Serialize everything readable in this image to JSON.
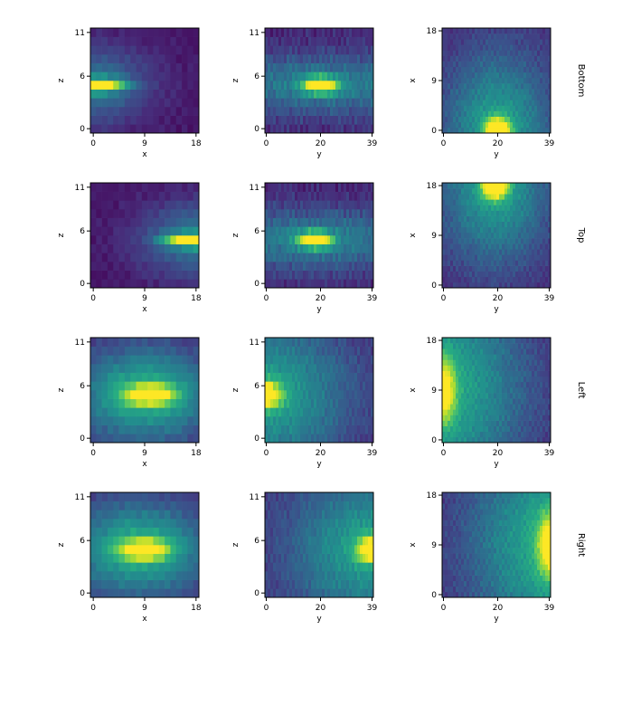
{
  "chart_data": {
    "type": "heatmap",
    "colormap": "viridis",
    "grid": false,
    "rows": [
      {
        "label": "Bottom",
        "panels": [
          {
            "xlabel": "x",
            "ylabel": "z",
            "xticks": [
              "0",
              "9",
              "18"
            ],
            "yticks": [
              "0",
              "6",
              "11"
            ],
            "xlim": [
              0,
              18
            ],
            "ylim": [
              0,
              11
            ],
            "nx": 19,
            "ny": 12,
            "blobs": [
              {
                "cx": 0,
                "cy": 5,
                "sx": 3.5,
                "sy": 0.5,
                "a": 1.0
              },
              {
                "cx": 0,
                "cy": 5,
                "sx": 7,
                "sy": 3,
                "a": 0.35
              }
            ],
            "base": 0.06,
            "noise": 0.05
          },
          {
            "xlabel": "y",
            "ylabel": "z",
            "xticks": [
              "0",
              "20",
              "39"
            ],
            "yticks": [
              "0",
              "6",
              "11"
            ],
            "xlim": [
              0,
              39
            ],
            "ylim": [
              0,
              11
            ],
            "nx": 40,
            "ny": 12,
            "blobs": [
              {
                "cx": 20,
                "cy": 5,
                "sx": 4,
                "sy": 0.6,
                "a": 0.95
              },
              {
                "cx": 20,
                "cy": 5,
                "sx": 30,
                "sy": 2.5,
                "a": 0.35
              }
            ],
            "base": 0.1,
            "noise": 0.1
          },
          {
            "xlabel": "y",
            "ylabel": "x",
            "xticks": [
              "0",
              "20",
              "39"
            ],
            "yticks": [
              "0",
              "9",
              "18"
            ],
            "xlim": [
              0,
              39
            ],
            "ylim": [
              0,
              18
            ],
            "nx": 40,
            "ny": 19,
            "blobs": [
              {
                "cx": 20,
                "cy": 0,
                "sx": 3,
                "sy": 1.5,
                "a": 1.0
              },
              {
                "cx": 20,
                "cy": 0,
                "sx": 14,
                "sy": 10,
                "a": 0.45
              }
            ],
            "base": 0.12,
            "noise": 0.08
          }
        ]
      },
      {
        "label": "Top",
        "panels": [
          {
            "xlabel": "x",
            "ylabel": "z",
            "xticks": [
              "0",
              "9",
              "18"
            ],
            "yticks": [
              "0",
              "6",
              "11"
            ],
            "xlim": [
              0,
              18
            ],
            "ylim": [
              0,
              11
            ],
            "nx": 19,
            "ny": 12,
            "blobs": [
              {
                "cx": 18,
                "cy": 5,
                "sx": 3.5,
                "sy": 0.5,
                "a": 1.0
              },
              {
                "cx": 18,
                "cy": 5,
                "sx": 7,
                "sy": 3,
                "a": 0.35
              }
            ],
            "base": 0.06,
            "noise": 0.05
          },
          {
            "xlabel": "y",
            "ylabel": "z",
            "xticks": [
              "0",
              "20",
              "39"
            ],
            "yticks": [
              "0",
              "6",
              "11"
            ],
            "xlim": [
              0,
              39
            ],
            "ylim": [
              0,
              11
            ],
            "nx": 40,
            "ny": 12,
            "blobs": [
              {
                "cx": 18,
                "cy": 5,
                "sx": 4,
                "sy": 0.6,
                "a": 0.95
              },
              {
                "cx": 18,
                "cy": 5,
                "sx": 30,
                "sy": 2.5,
                "a": 0.35
              }
            ],
            "base": 0.1,
            "noise": 0.1
          },
          {
            "xlabel": "y",
            "ylabel": "x",
            "xticks": [
              "0",
              "20",
              "39"
            ],
            "yticks": [
              "0",
              "9",
              "18"
            ],
            "xlim": [
              0,
              39
            ],
            "ylim": [
              0,
              18
            ],
            "nx": 40,
            "ny": 19,
            "blobs": [
              {
                "cx": 19,
                "cy": 18,
                "sx": 3,
                "sy": 1.5,
                "a": 1.0
              },
              {
                "cx": 19,
                "cy": 18,
                "sx": 14,
                "sy": 10,
                "a": 0.45
              }
            ],
            "base": 0.12,
            "noise": 0.08
          }
        ]
      },
      {
        "label": "Left",
        "panels": [
          {
            "xlabel": "x",
            "ylabel": "z",
            "xticks": [
              "0",
              "9",
              "18"
            ],
            "yticks": [
              "0",
              "6",
              "11"
            ],
            "xlim": [
              0,
              18
            ],
            "ylim": [
              0,
              11
            ],
            "nx": 19,
            "ny": 12,
            "blobs": [
              {
                "cx": 10,
                "cy": 5,
                "sx": 3,
                "sy": 0.8,
                "a": 0.7
              },
              {
                "cx": 9,
                "cy": 5,
                "sx": 9,
                "sy": 4,
                "a": 0.55
              }
            ],
            "base": 0.08,
            "noise": 0.06
          },
          {
            "xlabel": "y",
            "ylabel": "z",
            "xticks": [
              "0",
              "20",
              "39"
            ],
            "yticks": [
              "0",
              "6",
              "11"
            ],
            "xlim": [
              0,
              39
            ],
            "ylim": [
              0,
              11
            ],
            "nx": 40,
            "ny": 12,
            "blobs": [
              {
                "cx": 0,
                "cy": 5,
                "sx": 4,
                "sy": 1,
                "a": 0.7
              },
              {
                "cx": 0,
                "cy": 5,
                "sx": 22,
                "sy": 6,
                "a": 0.45
              }
            ],
            "base": 0.12,
            "noise": 0.08
          },
          {
            "xlabel": "y",
            "ylabel": "x",
            "xticks": [
              "0",
              "20",
              "39"
            ],
            "yticks": [
              "0",
              "9",
              "18"
            ],
            "xlim": [
              0,
              39
            ],
            "ylim": [
              0,
              18
            ],
            "nx": 40,
            "ny": 19,
            "blobs": [
              {
                "cx": 0,
                "cy": 9,
                "sx": 3,
                "sy": 4,
                "a": 0.6
              },
              {
                "cx": 0,
                "cy": 9,
                "sx": 22,
                "sy": 14,
                "a": 0.5
              }
            ],
            "base": 0.1,
            "noise": 0.08
          }
        ]
      },
      {
        "label": "Right",
        "panels": [
          {
            "xlabel": "x",
            "ylabel": "z",
            "xticks": [
              "0",
              "9",
              "18"
            ],
            "yticks": [
              "0",
              "6",
              "11"
            ],
            "xlim": [
              0,
              18
            ],
            "ylim": [
              0,
              11
            ],
            "nx": 19,
            "ny": 12,
            "blobs": [
              {
                "cx": 9,
                "cy": 5,
                "sx": 3,
                "sy": 0.8,
                "a": 0.7
              },
              {
                "cx": 8,
                "cy": 5,
                "sx": 9,
                "sy": 4,
                "a": 0.55
              }
            ],
            "base": 0.08,
            "noise": 0.06
          },
          {
            "xlabel": "y",
            "ylabel": "z",
            "xticks": [
              "0",
              "20",
              "39"
            ],
            "yticks": [
              "0",
              "6",
              "11"
            ],
            "xlim": [
              0,
              39
            ],
            "ylim": [
              0,
              11
            ],
            "nx": 40,
            "ny": 12,
            "blobs": [
              {
                "cx": 39,
                "cy": 5,
                "sx": 4,
                "sy": 1,
                "a": 0.7
              },
              {
                "cx": 39,
                "cy": 5,
                "sx": 22,
                "sy": 6,
                "a": 0.45
              }
            ],
            "base": 0.12,
            "noise": 0.08
          },
          {
            "xlabel": "y",
            "ylabel": "x",
            "xticks": [
              "0",
              "20",
              "39"
            ],
            "yticks": [
              "0",
              "9",
              "18"
            ],
            "xlim": [
              0,
              39
            ],
            "ylim": [
              0,
              18
            ],
            "nx": 40,
            "ny": 19,
            "blobs": [
              {
                "cx": 39,
                "cy": 9,
                "sx": 3,
                "sy": 4,
                "a": 0.6
              },
              {
                "cx": 39,
                "cy": 9,
                "sx": 22,
                "sy": 14,
                "a": 0.5
              }
            ],
            "base": 0.1,
            "noise": 0.08
          }
        ]
      }
    ]
  }
}
